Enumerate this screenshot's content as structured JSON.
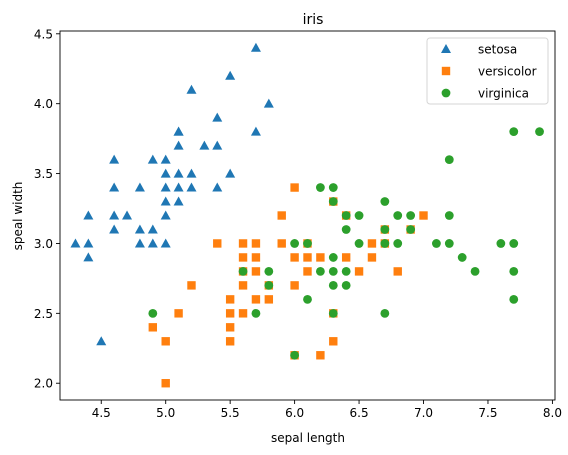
{
  "chart_data": {
    "type": "scatter",
    "title": "iris",
    "xlabel": "sepal length",
    "ylabel": "speal width",
    "xlim": [
      4.18,
      8.02
    ],
    "ylim": [
      1.88,
      4.52
    ],
    "xticks": [
      "4.5",
      "5.0",
      "5.5",
      "6.0",
      "6.5",
      "7.0",
      "7.5",
      "8.0"
    ],
    "yticks": [
      "2.0",
      "2.5",
      "3.0",
      "3.5",
      "4.0",
      "4.5"
    ],
    "grid": false,
    "legend_position": "top-right",
    "series": [
      {
        "name": "setosa",
        "marker": "triangle",
        "color": "#1f77b4",
        "points": [
          [
            4.3,
            3.0
          ],
          [
            4.4,
            3.0
          ],
          [
            4.4,
            3.2
          ],
          [
            4.4,
            2.9
          ],
          [
            4.5,
            2.3
          ],
          [
            4.6,
            3.1
          ],
          [
            4.6,
            3.4
          ],
          [
            4.6,
            3.6
          ],
          [
            4.6,
            3.2
          ],
          [
            4.7,
            3.2
          ],
          [
            4.8,
            3.4
          ],
          [
            4.8,
            3.0
          ],
          [
            4.8,
            3.1
          ],
          [
            4.9,
            3.0
          ],
          [
            4.9,
            3.1
          ],
          [
            4.9,
            3.6
          ],
          [
            5.0,
            3.6
          ],
          [
            5.0,
            3.4
          ],
          [
            5.0,
            3.0
          ],
          [
            5.0,
            3.5
          ],
          [
            5.0,
            3.3
          ],
          [
            5.0,
            3.2
          ],
          [
            5.1,
            3.5
          ],
          [
            5.1,
            3.8
          ],
          [
            5.1,
            3.7
          ],
          [
            5.1,
            3.3
          ],
          [
            5.1,
            3.4
          ],
          [
            5.1,
            3.8
          ],
          [
            5.2,
            3.5
          ],
          [
            5.2,
            3.4
          ],
          [
            5.2,
            4.1
          ],
          [
            5.3,
            3.7
          ],
          [
            5.4,
            3.9
          ],
          [
            5.4,
            3.7
          ],
          [
            5.4,
            3.4
          ],
          [
            5.5,
            4.2
          ],
          [
            5.5,
            3.5
          ],
          [
            5.7,
            4.4
          ],
          [
            5.7,
            3.8
          ],
          [
            5.8,
            4.0
          ]
        ]
      },
      {
        "name": "versicolor",
        "marker": "square",
        "color": "#ff7f0e",
        "points": [
          [
            4.9,
            2.4
          ],
          [
            5.0,
            2.0
          ],
          [
            5.0,
            2.3
          ],
          [
            5.1,
            2.5
          ],
          [
            5.2,
            2.7
          ],
          [
            5.4,
            3.0
          ],
          [
            5.5,
            2.3
          ],
          [
            5.5,
            2.4
          ],
          [
            5.5,
            2.5
          ],
          [
            5.5,
            2.6
          ],
          [
            5.6,
            2.9
          ],
          [
            5.6,
            3.0
          ],
          [
            5.6,
            2.5
          ],
          [
            5.6,
            2.7
          ],
          [
            5.6,
            2.8
          ],
          [
            5.7,
            2.8
          ],
          [
            5.7,
            2.6
          ],
          [
            5.7,
            3.0
          ],
          [
            5.7,
            2.9
          ],
          [
            5.8,
            2.7
          ],
          [
            5.8,
            2.6
          ],
          [
            5.9,
            3.0
          ],
          [
            5.9,
            3.2
          ],
          [
            6.0,
            2.2
          ],
          [
            6.0,
            2.9
          ],
          [
            6.0,
            2.7
          ],
          [
            6.0,
            3.4
          ],
          [
            6.1,
            2.8
          ],
          [
            6.1,
            2.9
          ],
          [
            6.1,
            3.0
          ],
          [
            6.2,
            2.2
          ],
          [
            6.2,
            2.9
          ],
          [
            6.3,
            3.3
          ],
          [
            6.3,
            2.5
          ],
          [
            6.3,
            2.3
          ],
          [
            6.4,
            3.2
          ],
          [
            6.4,
            2.9
          ],
          [
            6.5,
            2.8
          ],
          [
            6.6,
            2.9
          ],
          [
            6.6,
            3.0
          ],
          [
            6.7,
            3.1
          ],
          [
            6.7,
            3.0
          ],
          [
            6.8,
            2.8
          ],
          [
            6.9,
            3.1
          ],
          [
            7.0,
            3.2
          ]
        ]
      },
      {
        "name": "virginica",
        "marker": "circle",
        "color": "#2ca02c",
        "points": [
          [
            4.9,
            2.5
          ],
          [
            5.6,
            2.8
          ],
          [
            5.7,
            2.5
          ],
          [
            5.8,
            2.7
          ],
          [
            5.8,
            2.8
          ],
          [
            6.0,
            2.2
          ],
          [
            6.0,
            3.0
          ],
          [
            6.1,
            3.0
          ],
          [
            6.1,
            2.6
          ],
          [
            6.2,
            3.4
          ],
          [
            6.2,
            2.8
          ],
          [
            6.3,
            3.3
          ],
          [
            6.3,
            2.9
          ],
          [
            6.3,
            2.8
          ],
          [
            6.3,
            2.7
          ],
          [
            6.3,
            2.5
          ],
          [
            6.3,
            3.4
          ],
          [
            6.4,
            3.2
          ],
          [
            6.4,
            2.8
          ],
          [
            6.4,
            2.7
          ],
          [
            6.4,
            3.1
          ],
          [
            6.5,
            3.0
          ],
          [
            6.5,
            3.2
          ],
          [
            6.7,
            2.5
          ],
          [
            6.7,
            3.3
          ],
          [
            6.7,
            3.1
          ],
          [
            6.7,
            3.0
          ],
          [
            6.8,
            3.0
          ],
          [
            6.8,
            3.2
          ],
          [
            6.9,
            3.1
          ],
          [
            6.9,
            3.2
          ],
          [
            7.1,
            3.0
          ],
          [
            7.2,
            3.6
          ],
          [
            7.2,
            3.2
          ],
          [
            7.2,
            3.0
          ],
          [
            7.3,
            2.9
          ],
          [
            7.4,
            2.8
          ],
          [
            7.6,
            3.0
          ],
          [
            7.7,
            3.8
          ],
          [
            7.7,
            2.6
          ],
          [
            7.7,
            2.8
          ],
          [
            7.7,
            3.0
          ],
          [
            7.9,
            3.8
          ]
        ]
      }
    ]
  }
}
